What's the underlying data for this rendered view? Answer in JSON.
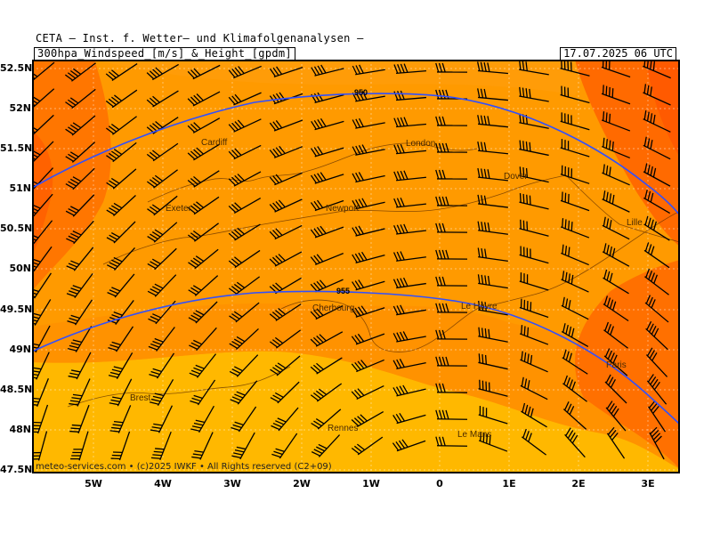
{
  "header": {
    "line1": "CETA – Inst. f. Wetter– und Klimafolgenanalysen –",
    "line2": "300hpa_Windspeed_[m/s]_&_Height_[gpdm]",
    "datetime": "17.07.2025 06 UTC"
  },
  "footer": "meteo-services.com • (c)2025 IWKF • All Rights reserved (C2+09)",
  "axes": {
    "lat_labels": [
      "52.5N",
      "52N",
      "51.5N",
      "51N",
      "50.5N",
      "50N",
      "49.5N",
      "49N",
      "48.5N",
      "48N",
      "47.5N"
    ],
    "lon_labels": [
      "5W",
      "4W",
      "3W",
      "2W",
      "1W",
      "0",
      "1E",
      "2E",
      "3E"
    ]
  },
  "contours": [
    {
      "label": "950"
    },
    {
      "label": "955"
    }
  ],
  "places": [
    {
      "name": "Cardiff"
    },
    {
      "name": "London"
    },
    {
      "name": "Dover"
    },
    {
      "name": "Exeter"
    },
    {
      "name": "Newport"
    },
    {
      "name": "Lille"
    },
    {
      "name": "Le Havre"
    },
    {
      "name": "Cherbourg"
    },
    {
      "name": "Paris"
    },
    {
      "name": "Brest"
    },
    {
      "name": "Rennes"
    },
    {
      "name": "Le Mans"
    }
  ],
  "colors": {
    "light": "#ffb800",
    "mid": "#ff9a00",
    "dark": "#ff7a00",
    "deep": "#ff5e00",
    "contour": "#3050ff",
    "barb": "#000000"
  }
}
